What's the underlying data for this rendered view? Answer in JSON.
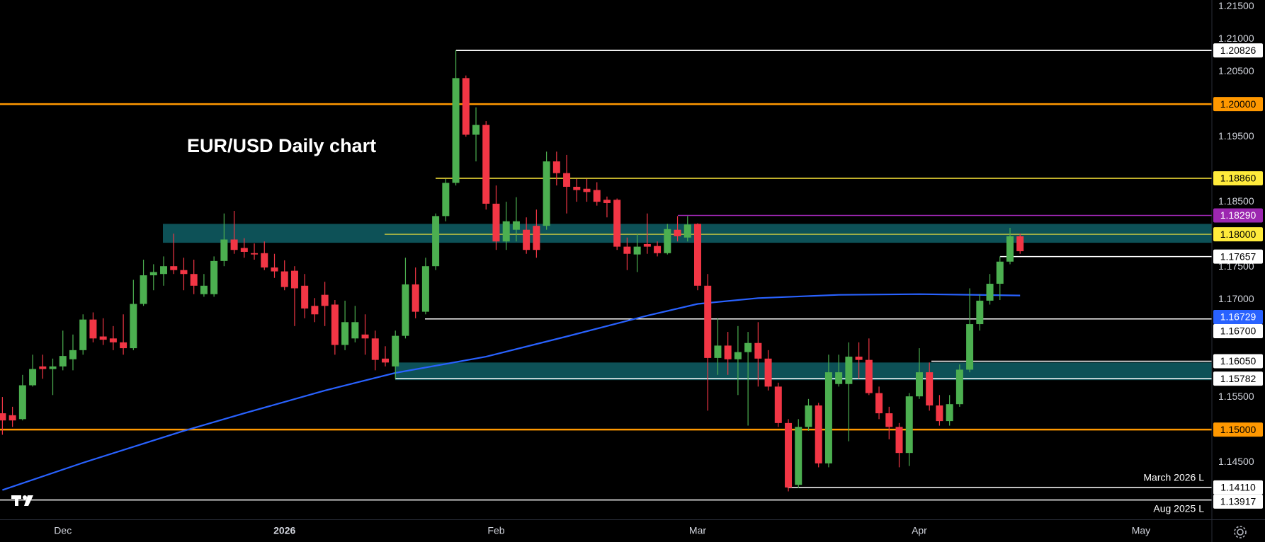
{
  "chart_data": {
    "type": "candlestick",
    "title": "EUR/USD Daily chart",
    "categories": [
      null,
      null,
      null,
      null,
      null,
      null,
      "Dec",
      null,
      null,
      null,
      null,
      null,
      null,
      null,
      null,
      null,
      null,
      null,
      null,
      null,
      null,
      null,
      null,
      null,
      null,
      null,
      null,
      null,
      "2026",
      null,
      null,
      null,
      null,
      null,
      null,
      null,
      null,
      null,
      null,
      null,
      null,
      null,
      null,
      null,
      null,
      null,
      null,
      null,
      null,
      "Feb",
      null,
      null,
      null,
      null,
      null,
      null,
      null,
      null,
      null,
      null,
      null,
      null,
      null,
      null,
      null,
      null,
      null,
      null,
      null,
      "Mar",
      null,
      null,
      null,
      null,
      null,
      null,
      null,
      null,
      null,
      null,
      null,
      null,
      null,
      null,
      null,
      null,
      null,
      null,
      null,
      null,
      null,
      "Apr",
      null,
      null,
      null,
      null,
      null,
      null,
      null,
      null,
      null,
      null,
      null,
      null,
      null,
      null,
      null,
      null,
      null,
      null,
      null,
      null,
      null,
      "May",
      null,
      null,
      null,
      null,
      null,
      null
    ],
    "open": [
      1.1525,
      1.1522,
      1.1516,
      1.1568,
      1.1597,
      1.1593,
      1.1597,
      1.1608,
      1.1622,
      1.1669,
      1.1643,
      1.164,
      1.1634,
      1.1625,
      1.1693,
      1.1737,
      1.1739,
      1.1751,
      1.1745,
      1.1739,
      1.1708,
      1.1708,
      1.1759,
      1.1792,
      1.1779,
      1.1771,
      1.1771,
      1.1749,
      1.1743,
      1.1744,
      1.1721,
      1.169,
      1.1707,
      1.1692,
      1.163,
      1.164,
      1.1646,
      1.164,
      1.1609,
      1.1597,
      1.1644,
      1.1723,
      1.1681,
      1.1751,
      1.1828,
      1.1879,
      1.204,
      1.1953,
      1.1968,
      1.1847,
      1.1789,
      1.1807,
      1.1807,
      1.1813,
      1.1813,
      1.1912,
      1.1894,
      1.1873,
      1.187,
      1.1868,
      1.1853,
      1.1853,
      1.1781,
      1.1769,
      1.1785,
      1.1782,
      1.1771,
      1.1807,
      1.1795,
      1.1816,
      1.1721,
      1.161,
      1.1629,
      1.1608,
      1.1619,
      1.1633,
      1.1609,
      1.1566,
      1.151,
      1.1415,
      1.1504,
      1.1537,
      1.1448,
      1.157,
      1.157,
      1.1612,
      1.1607,
      1.1556,
      1.1525,
      1.1504,
      1.1464,
      1.1551,
      1.1588,
      1.1537,
      1.1513,
      1.1539,
      1.1592,
      1.1662,
      1.1698,
      1.1724,
      1.1758,
      1.1797,
      null,
      null,
      null,
      null,
      null,
      null,
      null,
      null,
      null,
      null,
      null,
      null,
      null,
      null,
      null,
      null,
      null,
      null
    ],
    "high": [
      1.155,
      1.1535,
      1.1584,
      1.1615,
      1.1615,
      1.1609,
      1.1652,
      1.1646,
      1.1677,
      1.168,
      1.1671,
      1.1659,
      1.1677,
      1.173,
      1.1761,
      1.1754,
      1.1766,
      1.1801,
      1.1764,
      1.1761,
      1.1739,
      1.1766,
      1.1832,
      1.1836,
      1.1794,
      1.1786,
      1.1789,
      1.177,
      1.176,
      1.1751,
      1.1739,
      1.1702,
      1.1727,
      1.1699,
      1.1698,
      1.169,
      1.1677,
      1.1652,
      1.1628,
      1.1652,
      1.1764,
      1.1749,
      1.1764,
      1.1832,
      1.1885,
      1.2083,
      1.2044,
      1.1995,
      1.1974,
      1.1875,
      1.185,
      1.1857,
      1.1826,
      1.1838,
      1.1927,
      1.1927,
      1.1922,
      1.1885,
      1.1885,
      1.188,
      1.1858,
      1.1855,
      1.1795,
      1.1801,
      1.1832,
      1.1789,
      1.1816,
      1.1828,
      1.1828,
      1.1817,
      1.1739,
      1.1671,
      1.165,
      1.1659,
      1.165,
      1.1665,
      1.1622,
      1.1572,
      1.1516,
      1.1516,
      1.1547,
      1.1541,
      1.1615,
      1.1615,
      1.1634,
      1.1634,
      1.164,
      1.1566,
      1.1535,
      1.151,
      1.1556,
      1.1625,
      1.1603,
      1.1553,
      1.1553,
      1.16,
      1.1717,
      1.1708,
      1.1739,
      1.1766,
      1.181,
      1.1801,
      null,
      null,
      null,
      null,
      null,
      null,
      null,
      null,
      null,
      null,
      null,
      null,
      null,
      null,
      null,
      null,
      null,
      null
    ],
    "low": [
      1.1492,
      1.1504,
      1.1514,
      1.1566,
      1.1578,
      1.1553,
      1.1591,
      1.1591,
      1.1615,
      1.1634,
      1.163,
      1.1622,
      1.1615,
      1.1622,
      1.169,
      1.1714,
      1.1721,
      1.1739,
      1.1714,
      1.1708,
      1.1704,
      1.1704,
      1.1751,
      1.177,
      1.1764,
      1.1761,
      1.1745,
      1.1733,
      1.1714,
      1.1659,
      1.1671,
      1.1665,
      1.1659,
      1.1615,
      1.1622,
      1.1634,
      1.1615,
      1.1591,
      1.1597,
      1.1578,
      1.164,
      1.1671,
      1.1677,
      1.1745,
      1.182,
      1.1875,
      1.195,
      1.1912,
      1.1838,
      1.1776,
      1.1776,
      1.1789,
      1.177,
      1.1764,
      1.1807,
      1.1875,
      1.1832,
      1.185,
      1.185,
      1.1844,
      1.1826,
      1.1776,
      1.1745,
      1.1742,
      1.177,
      1.1766,
      1.1769,
      1.1789,
      1.1789,
      1.1714,
      1.1529,
      1.1584,
      1.1584,
      1.1553,
      1.1506,
      1.1566,
      1.156,
      1.1504,
      1.1405,
      1.141,
      1.1498,
      1.1442,
      1.1442,
      1.1566,
      1.1482,
      1.1578,
      1.1553,
      1.1516,
      1.1485,
      1.1442,
      1.1444,
      1.1547,
      1.1529,
      1.1506,
      1.1506,
      1.1535,
      1.1588,
      1.1652,
      1.1692,
      1.1699,
      1.1754,
      1.177,
      null,
      null,
      null,
      null,
      null,
      null,
      null,
      null,
      null,
      null,
      null,
      null,
      null,
      null,
      null,
      null,
      null,
      null
    ],
    "close": [
      1.1514,
      1.1514,
      1.1568,
      1.1593,
      1.1593,
      1.1597,
      1.1613,
      1.1622,
      1.1669,
      1.164,
      1.1638,
      1.1634,
      1.1625,
      1.1693,
      1.1737,
      1.1742,
      1.1751,
      1.1745,
      1.1739,
      1.1721,
      1.1721,
      1.1759,
      1.1792,
      1.1776,
      1.1773,
      1.1769,
      1.1749,
      1.1743,
      1.1719,
      1.1717,
      1.1686,
      1.1677,
      1.169,
      1.163,
      1.1665,
      1.1665,
      1.164,
      1.1607,
      1.1603,
      1.1644,
      1.1723,
      1.1681,
      1.1751,
      1.1828,
      1.1879,
      1.204,
      1.1953,
      1.1968,
      1.1847,
      1.1789,
      1.182,
      1.182,
      1.1776,
      1.1776,
      1.1912,
      1.1894,
      1.1873,
      1.1868,
      1.1865,
      1.185,
      1.1848,
      1.1781,
      1.177,
      1.1781,
      1.1781,
      1.1771,
      1.1808,
      1.1797,
      1.1815,
      1.1721,
      1.161,
      1.1629,
      1.1608,
      1.1619,
      1.1633,
      1.1609,
      1.1566,
      1.151,
      1.1411,
      1.1504,
      1.1537,
      1.1448,
      1.1588,
      1.1588,
      1.1612,
      1.1607,
      1.1556,
      1.1525,
      1.1504,
      1.1464,
      1.1551,
      1.1588,
      1.1537,
      1.1513,
      1.1539,
      1.1592,
      1.1662,
      1.1698,
      1.1724,
      1.1758,
      1.1797,
      1.1774,
      null,
      null,
      null,
      null,
      null,
      null,
      null,
      null,
      null,
      null,
      null,
      null,
      null,
      null,
      null,
      null,
      null,
      null
    ],
    "up_color": "#4caf50",
    "down_color": "#f23645",
    "ylim": [
      1.1362,
      1.216
    ],
    "yticks": [
      {
        "value": 1.215,
        "label": "1.21500"
      },
      {
        "value": 1.21,
        "label": "1.21000"
      },
      {
        "value": 1.205,
        "label": "1.20500"
      },
      {
        "value": 1.195,
        "label": "1.19500"
      },
      {
        "value": 1.185,
        "label": "1.18500"
      },
      {
        "value": 1.175,
        "label": "1.17500"
      },
      {
        "value": 1.17,
        "label": "1.17000"
      },
      {
        "value": 1.155,
        "label": "1.15500"
      },
      {
        "value": 1.145,
        "label": "1.14500"
      }
    ],
    "moving_average": {
      "color": "#2962ff",
      "x": [
        0,
        8,
        18,
        24,
        32,
        39,
        48,
        56,
        64,
        69,
        75,
        83,
        91,
        101
      ],
      "values": [
        1.1407,
        1.1449,
        1.1498,
        1.1525,
        1.156,
        1.1587,
        1.1612,
        1.1643,
        1.1675,
        1.1693,
        1.1702,
        1.1707,
        1.1708,
        1.1706
      ]
    },
    "zones": [
      {
        "low": 1.1787,
        "high": 1.1816,
        "color": "#0f5f66"
      },
      {
        "low": 1.1576,
        "high": 1.1603,
        "color": "#0f5f66"
      }
    ],
    "levels": [
      {
        "value": 1.20826,
        "label": "1.20826",
        "color": "#ffffff",
        "text_color": "#000000"
      },
      {
        "value": 1.2,
        "label": "1.20000",
        "color": "#ff9800",
        "text_color": "#000000"
      },
      {
        "value": 1.1886,
        "label": "1.18860",
        "color": "#ffeb3b",
        "text_color": "#000000"
      },
      {
        "value": 1.1829,
        "label": "1.18290",
        "color": "#9c27b0",
        "text_color": "#ffffff"
      },
      {
        "value": 1.18,
        "label": "1.18000",
        "color": "#ffeb3b",
        "text_color": "#000000"
      },
      {
        "value": 1.17657,
        "label": "1.17657",
        "color": "#ffffff",
        "text_color": "#000000"
      },
      {
        "value": 1.16729,
        "label": "1.16729",
        "color": "#2962ff",
        "text_color": "#ffffff"
      },
      {
        "value": 1.167,
        "label": "1.16700",
        "color": "#ffffff",
        "text_color": "#000000"
      },
      {
        "value": 1.1605,
        "label": "1.16050",
        "color": "#ffffff",
        "text_color": "#000000"
      },
      {
        "value": 1.15782,
        "label": "1.15782",
        "color": "#ffffff",
        "text_color": "#000000"
      },
      {
        "value": 1.15,
        "label": "1.15000",
        "color": "#ff9800",
        "text_color": "#000000"
      },
      {
        "value": 1.1411,
        "label": "1.14110",
        "color": "#ffffff",
        "text_color": "#000000",
        "note": "March 2026 L"
      },
      {
        "value": 1.13917,
        "label": "1.13917",
        "color": "#ffffff",
        "text_color": "#000000",
        "note": "Aug 2025 L"
      }
    ]
  }
}
